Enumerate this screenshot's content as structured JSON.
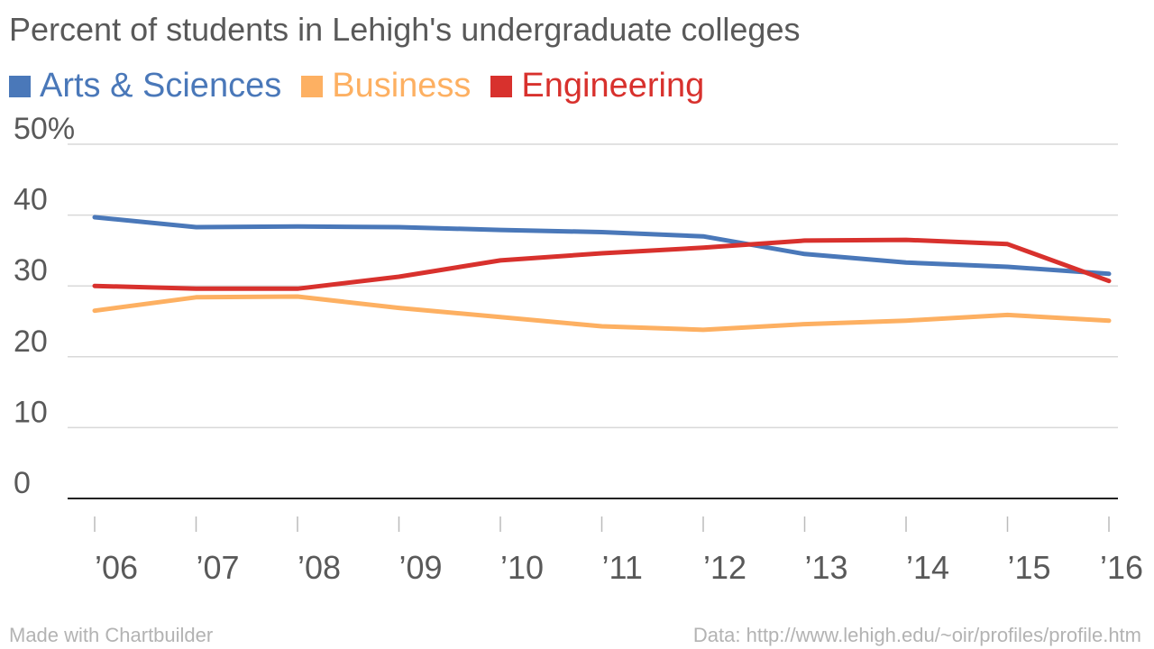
{
  "title": "Percent of students in Lehigh's undergraduate colleges",
  "footer": {
    "made_with": "Made with Chartbuilder",
    "source": "Data: http://www.lehigh.edu/~oir/profiles/profile.htm"
  },
  "chart_data": {
    "type": "line",
    "title": "Percent of students in Lehigh's undergraduate colleges",
    "x": [
      "’06",
      "’07",
      "’08",
      "’09",
      "’10",
      "’11",
      "’12",
      "’13",
      "’14",
      "’15",
      "’16"
    ],
    "y_ticks": [
      0,
      10,
      20,
      30,
      40,
      50
    ],
    "y_tick_labels": [
      "0",
      "10",
      "20",
      "30",
      "40",
      "50%"
    ],
    "ylim": [
      0,
      50
    ],
    "grid": true,
    "legend_position": "top-left",
    "series": [
      {
        "name": "Arts & Sciences",
        "color": "#4a78b9",
        "values": [
          39.7,
          38.3,
          38.4,
          38.3,
          37.9,
          37.6,
          37.0,
          34.5,
          33.3,
          32.7,
          31.7
        ]
      },
      {
        "name": "Business",
        "color": "#fdb062",
        "values": [
          26.5,
          28.4,
          28.5,
          26.9,
          25.6,
          24.3,
          23.8,
          24.6,
          25.1,
          25.9,
          25.1
        ]
      },
      {
        "name": "Engineering",
        "color": "#d8312d",
        "values": [
          30.0,
          29.6,
          29.6,
          31.3,
          33.6,
          34.6,
          35.4,
          36.4,
          36.5,
          35.9,
          30.7
        ]
      }
    ]
  }
}
